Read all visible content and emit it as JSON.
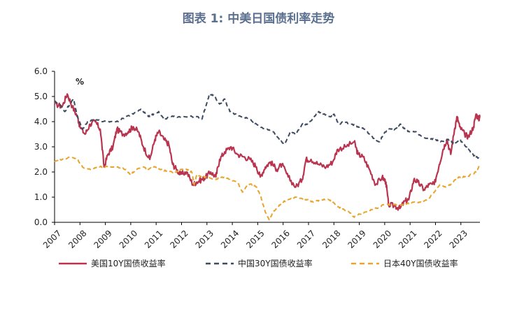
{
  "chart_data": {
    "type": "line",
    "title": "图表 1: 中美日国债利率走势",
    "unit": "%",
    "ylim": [
      0,
      6
    ],
    "yticks": [
      "6.0",
      "5.0",
      "4.0",
      "3.0",
      "2.0",
      "1.0",
      "0.0"
    ],
    "xlim": [
      2007,
      2023.75
    ],
    "xticks": [
      "2007",
      "2008",
      "2009",
      "2010",
      "2011",
      "2012",
      "2013",
      "2014",
      "2015",
      "2016",
      "2017",
      "2018",
      "2019",
      "2020",
      "2021",
      "2022",
      "2023"
    ],
    "grid": false,
    "legend": "bottom",
    "series": [
      {
        "name": "美国10Y国债收益率",
        "color": "#b8344f",
        "style": "solid",
        "points": [
          [
            2007.0,
            4.7
          ],
          [
            2007.3,
            4.6
          ],
          [
            2007.5,
            5.1
          ],
          [
            2007.7,
            4.6
          ],
          [
            2007.9,
            4.2
          ],
          [
            2008.0,
            3.8
          ],
          [
            2008.2,
            3.5
          ],
          [
            2008.4,
            3.9
          ],
          [
            2008.6,
            4.0
          ],
          [
            2008.8,
            3.7
          ],
          [
            2008.95,
            2.2
          ],
          [
            2009.1,
            2.7
          ],
          [
            2009.3,
            3.0
          ],
          [
            2009.45,
            3.7
          ],
          [
            2009.7,
            3.5
          ],
          [
            2009.9,
            3.6
          ],
          [
            2010.1,
            3.8
          ],
          [
            2010.3,
            3.6
          ],
          [
            2010.5,
            3.0
          ],
          [
            2010.75,
            2.5
          ],
          [
            2010.95,
            3.3
          ],
          [
            2011.1,
            3.6
          ],
          [
            2011.3,
            3.3
          ],
          [
            2011.5,
            3.1
          ],
          [
            2011.65,
            2.3
          ],
          [
            2011.8,
            2.1
          ],
          [
            2011.95,
            1.9
          ],
          [
            2012.2,
            2.0
          ],
          [
            2012.45,
            1.5
          ],
          [
            2012.6,
            1.6
          ],
          [
            2012.8,
            1.7
          ],
          [
            2012.95,
            1.8
          ],
          [
            2013.15,
            2.0
          ],
          [
            2013.35,
            1.8
          ],
          [
            2013.5,
            2.5
          ],
          [
            2013.7,
            2.8
          ],
          [
            2013.95,
            3.0
          ],
          [
            2014.2,
            2.7
          ],
          [
            2014.45,
            2.6
          ],
          [
            2014.7,
            2.5
          ],
          [
            2014.95,
            2.2
          ],
          [
            2015.1,
            1.8
          ],
          [
            2015.3,
            2.2
          ],
          [
            2015.5,
            2.4
          ],
          [
            2015.75,
            2.1
          ],
          [
            2015.95,
            2.3
          ],
          [
            2016.2,
            1.8
          ],
          [
            2016.5,
            1.4
          ],
          [
            2016.75,
            1.7
          ],
          [
            2016.9,
            2.5
          ],
          [
            2017.1,
            2.5
          ],
          [
            2017.4,
            2.3
          ],
          [
            2017.7,
            2.2
          ],
          [
            2017.95,
            2.4
          ],
          [
            2018.15,
            2.9
          ],
          [
            2018.45,
            3.0
          ],
          [
            2018.8,
            3.2
          ],
          [
            2018.95,
            2.7
          ],
          [
            2019.15,
            2.6
          ],
          [
            2019.4,
            2.1
          ],
          [
            2019.65,
            1.5
          ],
          [
            2019.9,
            1.8
          ],
          [
            2020.05,
            1.6
          ],
          [
            2020.15,
            0.7
          ],
          [
            2020.4,
            0.65
          ],
          [
            2020.6,
            0.55
          ],
          [
            2020.8,
            0.85
          ],
          [
            2020.95,
            0.9
          ],
          [
            2021.15,
            1.7
          ],
          [
            2021.3,
            1.6
          ],
          [
            2021.55,
            1.3
          ],
          [
            2021.75,
            1.5
          ],
          [
            2021.95,
            1.5
          ],
          [
            2022.15,
            2.3
          ],
          [
            2022.3,
            2.9
          ],
          [
            2022.45,
            3.3
          ],
          [
            2022.6,
            2.7
          ],
          [
            2022.75,
            3.7
          ],
          [
            2022.85,
            4.2
          ],
          [
            2022.95,
            3.8
          ],
          [
            2023.15,
            3.5
          ],
          [
            2023.3,
            3.4
          ],
          [
            2023.5,
            3.8
          ],
          [
            2023.6,
            4.3
          ],
          [
            2023.7,
            4.1
          ],
          [
            2023.75,
            4.2
          ]
        ]
      },
      {
        "name": "中国30Y国债收益率",
        "color": "#3d4a60",
        "style": "dashed",
        "points": [
          [
            2007.0,
            4.8
          ],
          [
            2007.2,
            4.7
          ],
          [
            2007.4,
            4.4
          ],
          [
            2007.6,
            4.7
          ],
          [
            2007.75,
            4.9
          ],
          [
            2007.9,
            4.2
          ],
          [
            2008.1,
            3.7
          ],
          [
            2008.3,
            4.0
          ],
          [
            2008.6,
            4.1
          ],
          [
            2008.9,
            4.0
          ],
          [
            2009.2,
            4.0
          ],
          [
            2009.5,
            4.0
          ],
          [
            2009.8,
            4.2
          ],
          [
            2010.1,
            4.3
          ],
          [
            2010.4,
            4.5
          ],
          [
            2010.7,
            4.2
          ],
          [
            2010.9,
            4.3
          ],
          [
            2011.1,
            4.4
          ],
          [
            2011.3,
            4.1
          ],
          [
            2011.6,
            4.2
          ],
          [
            2011.9,
            4.2
          ],
          [
            2012.3,
            4.2
          ],
          [
            2012.6,
            4.2
          ],
          [
            2012.8,
            4.1
          ],
          [
            2012.95,
            4.6
          ],
          [
            2013.1,
            5.1
          ],
          [
            2013.3,
            5.0
          ],
          [
            2013.5,
            4.7
          ],
          [
            2013.7,
            4.9
          ],
          [
            2013.9,
            4.4
          ],
          [
            2014.1,
            4.3
          ],
          [
            2014.4,
            4.2
          ],
          [
            2014.7,
            4.1
          ],
          [
            2014.95,
            3.9
          ],
          [
            2015.3,
            3.7
          ],
          [
            2015.6,
            3.6
          ],
          [
            2015.85,
            3.3
          ],
          [
            2016.05,
            3.1
          ],
          [
            2016.3,
            3.6
          ],
          [
            2016.5,
            3.5
          ],
          [
            2016.75,
            3.9
          ],
          [
            2016.95,
            3.9
          ],
          [
            2017.15,
            4.1
          ],
          [
            2017.4,
            4.4
          ],
          [
            2017.6,
            4.3
          ],
          [
            2017.85,
            4.2
          ],
          [
            2018.0,
            4.3
          ],
          [
            2018.2,
            3.9
          ],
          [
            2018.4,
            4.0
          ],
          [
            2018.7,
            3.9
          ],
          [
            2018.95,
            3.8
          ],
          [
            2019.2,
            3.7
          ],
          [
            2019.4,
            3.5
          ],
          [
            2019.6,
            3.3
          ],
          [
            2019.8,
            3.2
          ],
          [
            2019.95,
            3.5
          ],
          [
            2020.15,
            3.7
          ],
          [
            2020.4,
            3.7
          ],
          [
            2020.6,
            3.9
          ],
          [
            2020.8,
            3.7
          ],
          [
            2020.95,
            3.6
          ],
          [
            2021.2,
            3.6
          ],
          [
            2021.5,
            3.4
          ],
          [
            2021.8,
            3.3
          ],
          [
            2021.95,
            3.3
          ],
          [
            2022.2,
            3.2
          ],
          [
            2022.5,
            3.3
          ],
          [
            2022.75,
            3.1
          ],
          [
            2022.95,
            3.3
          ],
          [
            2023.2,
            3.0
          ],
          [
            2023.45,
            2.7
          ],
          [
            2023.6,
            2.6
          ],
          [
            2023.75,
            2.5
          ]
        ]
      },
      {
        "name": "日本40Y国债收益率",
        "color": "#e8a42c",
        "style": "dashed",
        "points": [
          [
            2007.0,
            2.4
          ],
          [
            2007.3,
            2.5
          ],
          [
            2007.6,
            2.6
          ],
          [
            2007.9,
            2.5
          ],
          [
            2008.1,
            2.2
          ],
          [
            2008.4,
            2.1
          ],
          [
            2008.7,
            2.2
          ],
          [
            2008.95,
            2.2
          ],
          [
            2009.2,
            2.2
          ],
          [
            2009.5,
            2.2
          ],
          [
            2009.8,
            2.1
          ],
          [
            2010.0,
            1.9
          ],
          [
            2010.2,
            2.1
          ],
          [
            2010.5,
            2.2
          ],
          [
            2010.7,
            2.1
          ],
          [
            2010.95,
            2.2
          ],
          [
            2011.2,
            2.1
          ],
          [
            2011.5,
            2.0
          ],
          [
            2011.8,
            2.0
          ],
          [
            2011.95,
            2.1
          ],
          [
            2012.2,
            2.1
          ],
          [
            2012.4,
            2.0
          ],
          [
            2012.5,
            1.5
          ],
          [
            2012.6,
            1.9
          ],
          [
            2012.8,
            1.8
          ],
          [
            2012.95,
            1.8
          ],
          [
            2013.3,
            1.7
          ],
          [
            2013.6,
            1.8
          ],
          [
            2013.9,
            1.7
          ],
          [
            2014.2,
            1.6
          ],
          [
            2014.4,
            1.2
          ],
          [
            2014.6,
            1.5
          ],
          [
            2014.8,
            1.5
          ],
          [
            2014.95,
            1.4
          ],
          [
            2015.1,
            1.1
          ],
          [
            2015.3,
            0.4
          ],
          [
            2015.45,
            0.1
          ],
          [
            2015.6,
            0.4
          ],
          [
            2015.8,
            0.6
          ],
          [
            2015.95,
            0.8
          ],
          [
            2016.2,
            0.9
          ],
          [
            2016.5,
            1.0
          ],
          [
            2016.8,
            0.9
          ],
          [
            2016.95,
            0.9
          ],
          [
            2017.2,
            0.8
          ],
          [
            2017.5,
            0.9
          ],
          [
            2017.8,
            0.9
          ],
          [
            2017.95,
            0.8
          ],
          [
            2018.2,
            0.6
          ],
          [
            2018.4,
            0.5
          ],
          [
            2018.6,
            0.4
          ],
          [
            2018.8,
            0.2
          ],
          [
            2018.95,
            0.3
          ],
          [
            2019.2,
            0.4
          ],
          [
            2019.5,
            0.5
          ],
          [
            2019.8,
            0.6
          ],
          [
            2019.95,
            0.7
          ],
          [
            2020.3,
            0.7
          ],
          [
            2020.6,
            0.7
          ],
          [
            2020.9,
            0.75
          ],
          [
            2021.1,
            0.8
          ],
          [
            2021.4,
            0.8
          ],
          [
            2021.7,
            0.9
          ],
          [
            2021.95,
            1.2
          ],
          [
            2022.2,
            1.5
          ],
          [
            2022.4,
            1.4
          ],
          [
            2022.6,
            1.5
          ],
          [
            2022.8,
            1.7
          ],
          [
            2022.95,
            1.8
          ],
          [
            2023.2,
            1.8
          ],
          [
            2023.4,
            1.9
          ],
          [
            2023.6,
            2.0
          ],
          [
            2023.75,
            2.3
          ]
        ]
      }
    ]
  }
}
